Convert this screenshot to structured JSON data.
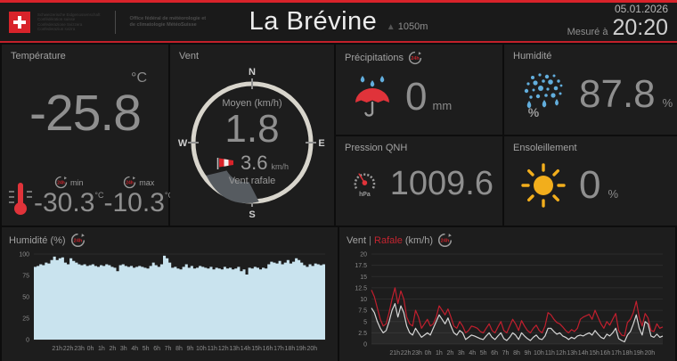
{
  "badges": {
    "h24": "24h"
  },
  "header": {
    "logo": {
      "confederation_lines": [
        "Schweizerische Eidgenossenschaft",
        "Confédération suisse",
        "Confederazione Svizzera",
        "Confederaziun svizra"
      ],
      "office_line1": "Office fédéral de météorologie et",
      "office_line2": "de climatologie MétéoSuisse"
    },
    "station_name": "La Brévine",
    "altitude": "1050m",
    "date": "05.01.2026",
    "measured_label": "Mesuré à",
    "time": "20:20"
  },
  "temperature": {
    "title": "Température",
    "unit": "°C",
    "value": "-25.8",
    "min_label": "min",
    "max_label": "max",
    "min_value": "-30.3",
    "max_value": "-10.3",
    "minmax_unit": "°C"
  },
  "wind": {
    "title": "Vent",
    "mean_label": "Moyen (km/h)",
    "mean_value": "1.8",
    "gust_value": "3.6",
    "gust_unit": "km/h",
    "gust_label": "Vent rafale",
    "compass": {
      "n": "N",
      "e": "E",
      "s": "S",
      "w": "W"
    },
    "direction_deg": 203
  },
  "precipitation": {
    "title": "Précipitations",
    "value": "0",
    "unit": "mm"
  },
  "humidity": {
    "title": "Humidité",
    "value": "87.8",
    "unit": "%",
    "icon_percent": "%"
  },
  "pressure": {
    "title": "Pression QNH",
    "value": "1009.6",
    "icon_unit": "hPa"
  },
  "sunshine": {
    "title": "Ensoleillement",
    "value": "0",
    "unit": "%"
  },
  "chart_data": [
    {
      "type": "area",
      "title": "Humidité (%)",
      "badge": "24h",
      "x_labels": [
        "21h",
        "22h",
        "23h",
        "0h",
        "1h",
        "2h",
        "3h",
        "4h",
        "5h",
        "6h",
        "7h",
        "8h",
        "9h",
        "10h",
        "11h",
        "12h",
        "13h",
        "14h",
        "15h",
        "16h",
        "17h",
        "18h",
        "19h",
        "20h"
      ],
      "ylim": [
        0,
        100
      ],
      "yticks": [
        0,
        25,
        50,
        75,
        100
      ],
      "grid": true,
      "legend_position": "none",
      "series": [
        {
          "name": "Humidité",
          "color": "#c9e3ee",
          "values": [
            85,
            86,
            88,
            87,
            90,
            89,
            93,
            97,
            93,
            95,
            96,
            90,
            88,
            95,
            92,
            90,
            88,
            87,
            88,
            86,
            87,
            88,
            86,
            85,
            87,
            86,
            88,
            87,
            85,
            84,
            80,
            87,
            88,
            86,
            85,
            86,
            84,
            85,
            86,
            85,
            84,
            83,
            86,
            90,
            87,
            85,
            88,
            98,
            95,
            90,
            84,
            85,
            83,
            82,
            85,
            88,
            84,
            86,
            83,
            84,
            86,
            85,
            84,
            83,
            85,
            82,
            84,
            83,
            82,
            85,
            83,
            84,
            82,
            83,
            85,
            80,
            82,
            76,
            84,
            83,
            85,
            84,
            82,
            84,
            83,
            88,
            91,
            90,
            89,
            92,
            88,
            90,
            93,
            89,
            91,
            95,
            93,
            90,
            87,
            85,
            88,
            86,
            89,
            88,
            87,
            88
          ]
        }
      ]
    },
    {
      "type": "line",
      "title_parts": {
        "main": "Vent",
        "sep": "|",
        "accent": "Rafale",
        "unit": "(km/h)"
      },
      "badge": "24h",
      "x_labels": [
        "21h",
        "22h",
        "23h",
        "0h",
        "1h",
        "2h",
        "3h",
        "4h",
        "5h",
        "6h",
        "7h",
        "8h",
        "9h",
        "10h",
        "11h",
        "12h",
        "13h",
        "14h",
        "15h",
        "16h",
        "17h",
        "18h",
        "19h",
        "20h"
      ],
      "ylim": [
        0,
        20
      ],
      "yticks": [
        0,
        2.5,
        5,
        7.5,
        10,
        12.5,
        15,
        17.5,
        20
      ],
      "grid": true,
      "legend_position": "title",
      "series": [
        {
          "name": "Vent",
          "color": "#d6d6d6",
          "fill": "rgba(255,255,255,0.05)",
          "values": [
            8,
            7,
            5,
            3.5,
            2.5,
            3,
            5,
            7.5,
            9,
            6,
            8.5,
            7,
            4,
            2.5,
            2,
            3.5,
            2.5,
            1.5,
            2,
            2.5,
            2,
            3.5,
            5,
            6.5,
            5.5,
            4.5,
            5.8,
            4,
            2.5,
            2,
            3,
            2.5,
            1,
            1.5,
            2,
            1.8,
            1.5,
            1.2,
            1,
            1.8,
            2.5,
            1.5,
            1,
            1.8,
            2.5,
            1.2,
            0.8,
            1.5,
            2.5,
            2,
            1,
            2.5,
            1.8,
            1.2,
            0.8,
            1.5,
            2,
            1.2,
            1,
            1.8,
            3.5,
            3.5,
            2.8,
            2.2,
            2.5,
            1.8,
            1.5,
            1,
            1.5,
            1.2,
            1.8,
            2,
            1.8,
            2.2,
            2.5,
            2,
            3,
            2.2,
            1.5,
            1.2,
            2.2,
            1.8,
            2.5,
            3.5,
            1.2,
            0.8,
            0.5,
            2,
            2.8,
            4.5,
            6.5,
            3.5,
            2,
            5,
            4.5,
            1.8,
            1.5,
            2.2,
            1.5,
            1.8
          ]
        },
        {
          "name": "Rafale",
          "color": "#c21f2e",
          "values": [
            12,
            10.5,
            8,
            5.5,
            4,
            4.5,
            7,
            10,
            12.5,
            9,
            11.8,
            10,
            6,
            4.5,
            4,
            7.5,
            6,
            3.5,
            4.5,
            5.5,
            4,
            4.5,
            6,
            8.5,
            7.5,
            6.5,
            7.8,
            6,
            4,
            3.5,
            5,
            4,
            2.5,
            3,
            4,
            3.8,
            3.5,
            2.8,
            2.5,
            3.5,
            4.5,
            3,
            2.5,
            3.8,
            5,
            3,
            2.5,
            4,
            5.5,
            4.5,
            3,
            5.2,
            4,
            3,
            2.5,
            3.5,
            4.2,
            3,
            2.5,
            4,
            7,
            6.5,
            5.5,
            4.8,
            4.5,
            3.8,
            3,
            2.5,
            3.2,
            2.8,
            3.5,
            5.5,
            6,
            6.3,
            6.6,
            5.5,
            7.5,
            6,
            4.5,
            3.5,
            5,
            4.2,
            5.5,
            6.8,
            3,
            2,
            1.8,
            4.8,
            5.5,
            7,
            9.5,
            6,
            4,
            6.8,
            5.8,
            3,
            2.8,
            4.5,
            3.5,
            3.8
          ]
        }
      ]
    }
  ]
}
